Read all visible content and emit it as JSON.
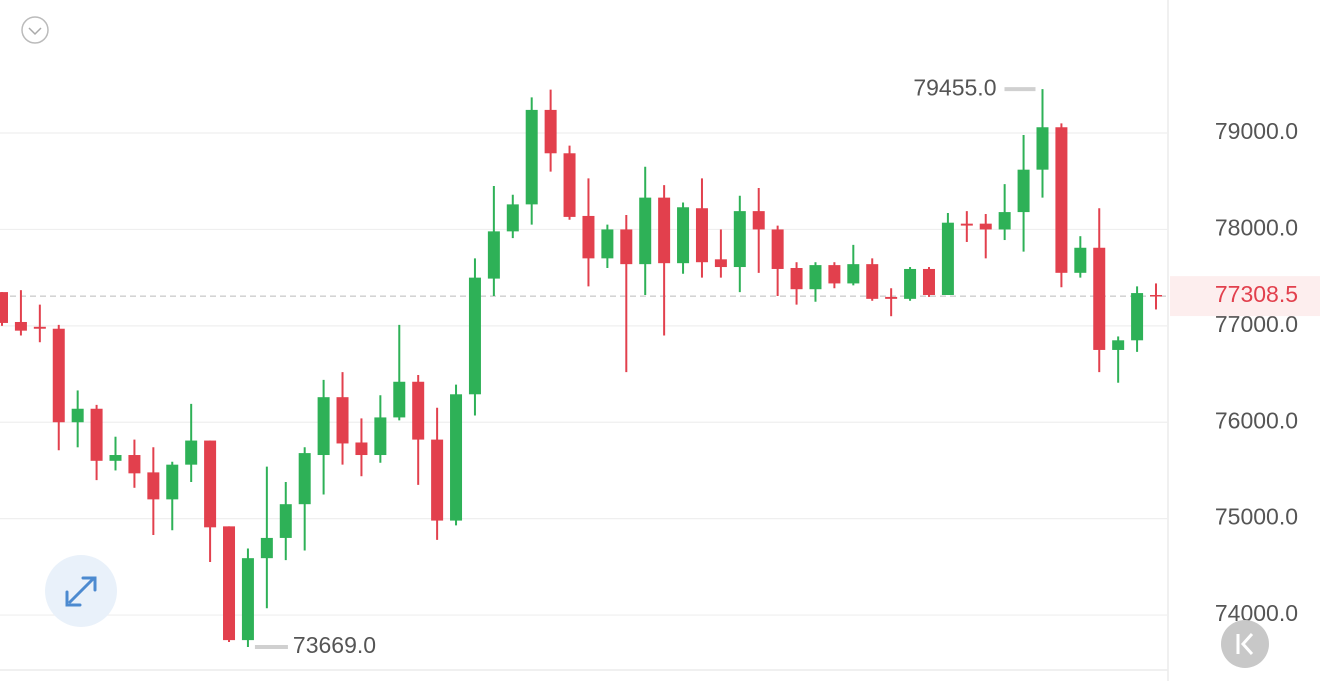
{
  "chart_data": {
    "type": "candlestick",
    "colors": {
      "up": "#2eb157",
      "down": "#e2404d"
    },
    "ylim": [
      73430,
      80380
    ],
    "yticks": [
      {
        "value": 74000,
        "label": "74000.0"
      },
      {
        "value": 75000,
        "label": "75000.0"
      },
      {
        "value": 76000,
        "label": "76000.0"
      },
      {
        "value": 77000,
        "label": "77000.0"
      },
      {
        "value": 78000,
        "label": "78000.0"
      },
      {
        "value": 79000,
        "label": "79000.0"
      }
    ],
    "grid": true,
    "last_price": 77308.5,
    "annotations": {
      "max": {
        "value": 79455,
        "label": "79455.0"
      },
      "min": {
        "value": 73669,
        "label": "73669.0"
      }
    },
    "open": [
      77350,
      77040,
      76990,
      76970,
      76000,
      76140,
      75600,
      75660,
      75480,
      75200,
      75560,
      75810,
      74920,
      73740,
      74590,
      74800,
      75150,
      75660,
      76260,
      75790,
      75660,
      76050,
      76420,
      75820,
      74980,
      76290,
      77490,
      77980,
      78260,
      79240,
      78790,
      78140,
      77700,
      78000,
      77640,
      78330,
      77650,
      78220,
      77690,
      77610,
      78190,
      78000,
      77600,
      77380,
      77630,
      77440,
      77640,
      77300,
      77280,
      77590,
      77320,
      78060,
      78060,
      78000,
      78180,
      78620,
      79060,
      77550,
      77810,
      76750,
      76850,
      77320
    ],
    "high": [
      77350,
      77370,
      77220,
      77010,
      76330,
      76180,
      75850,
      75820,
      75740,
      75590,
      76190,
      75810,
      74920,
      74690,
      75540,
      75380,
      75740,
      76440,
      76520,
      76040,
      76280,
      77010,
      76490,
      76150,
      76390,
      77700,
      78450,
      78360,
      79370,
      79450,
      78870,
      78530,
      78050,
      78150,
      78650,
      78460,
      78280,
      78530,
      78000,
      78350,
      78430,
      78040,
      77660,
      77660,
      77660,
      77840,
      77700,
      77390,
      77610,
      77610,
      78170,
      78190,
      78160,
      78470,
      78980,
      79455,
      79100,
      77930,
      78220,
      76890,
      77410,
      77440
    ],
    "low": [
      77000,
      76900,
      76830,
      75710,
      75740,
      75400,
      75500,
      75320,
      74830,
      74880,
      75380,
      74550,
      73720,
      73669,
      74070,
      74570,
      74670,
      75250,
      75560,
      75440,
      75580,
      76020,
      75350,
      74780,
      74930,
      76070,
      77310,
      77910,
      78050,
      78600,
      78100,
      77410,
      77600,
      76520,
      77320,
      76900,
      77540,
      77500,
      77500,
      77350,
      77550,
      77310,
      77220,
      77250,
      77390,
      77420,
      77260,
      77100,
      77260,
      77300,
      77320,
      77870,
      77700,
      77890,
      77770,
      78330,
      77400,
      77500,
      76520,
      76410,
      76730,
      77170
    ],
    "close": [
      77030,
      76950,
      76970,
      76000,
      76140,
      75600,
      75660,
      75470,
      75200,
      75560,
      75810,
      74910,
      73740,
      74590,
      74800,
      75150,
      75680,
      76260,
      75780,
      75660,
      76050,
      76420,
      75820,
      74980,
      76290,
      77500,
      77980,
      78260,
      79240,
      78790,
      78130,
      77700,
      78000,
      77640,
      78330,
      77650,
      78230,
      77660,
      77610,
      78190,
      78000,
      77590,
      77380,
      77630,
      77440,
      77640,
      77280,
      77280,
      77590,
      77320,
      78070,
      78040,
      78000,
      78180,
      78620,
      79060,
      77550,
      77810,
      76750,
      76850,
      77340,
      77308.5
    ]
  }
}
